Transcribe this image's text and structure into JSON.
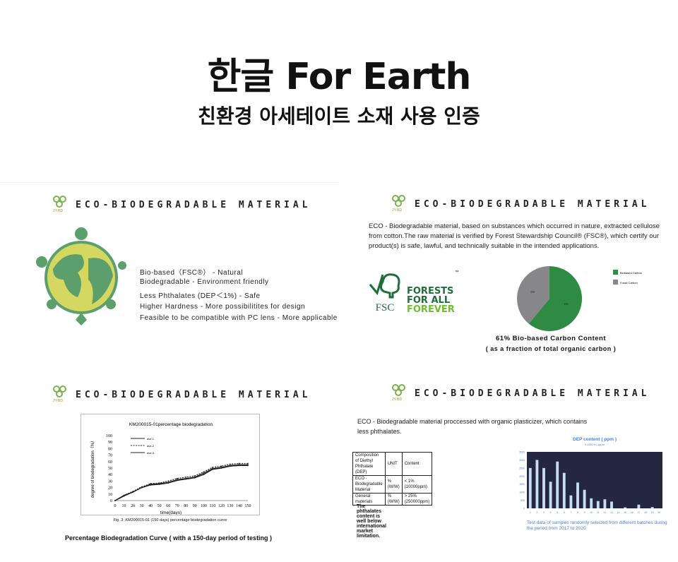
{
  "header": {
    "title": "한글 For Earth",
    "subtitle": "친환경 아세테이트 소재 사용 인증"
  },
  "section_heading": "ECO-BIODEGRADABLE MATERIAL",
  "logo_text": "JY-BD",
  "panel1": {
    "features": [
      "Bio-based（FSC®） - Natural",
      "Biodegradable - Environment friendly",
      "Less Phthalates (DEP＜1%) - Safe",
      "Higher Hardness - More possibilitites for design",
      "Feasible to be compatible with PC lens - More applicable"
    ]
  },
  "panel2": {
    "text": "ECO - Biodegradable material, based on substances which occurred in nature, extracted cellulose from cotton.The raw material is verified by  Forest Stewardship Council® (FSC®), which certify our product(s) is safe, lawful, and technically suitable in the intended applications.",
    "fsc_logo": {
      "line1": "FORESTS",
      "line2": "FOR ALL",
      "line3": "FOREVER",
      "mark": "FSC",
      "tm": "™"
    },
    "caption1": "61% Bio-based Carbon Content",
    "caption2": "( as a fraction of total organic carbon )"
  },
  "panel3": {
    "caption": "Fig. 3: KM200015-01 (150 days) percentage biodegradation curve",
    "footer": "Percentage Biodegradation Curve ( with a 150-day period of testing )"
  },
  "panel4": {
    "text": "ECO - Biodegradable material proccessed with organic plasticizer, which contains less phthalates.",
    "table": {
      "headers": [
        "Composition of Diethyl Phthalate (DEP)",
        "UNIT",
        "Content"
      ],
      "rows": [
        [
          "ECO - Biodegradable Material",
          "%(W/W)",
          "< 1% (10000ppm)"
        ],
        [
          "General materials",
          "%(W/W)",
          "> 25% (250000ppm)"
        ]
      ]
    },
    "note": "The phthalates content is well below international market limitation.",
    "chart_caption": "Test data of samples randomly selected from different batches during the period from 2017 to 2020"
  },
  "chart_data": [
    {
      "type": "pie",
      "labels": [
        "Biobased Carbon",
        "Fossil Carbon"
      ],
      "values": [
        61,
        39
      ],
      "slice_labels": [
        "61%",
        "39%"
      ],
      "colors": [
        "#2f8a43",
        "#87878a"
      ],
      "legend": "right"
    },
    {
      "type": "line",
      "title": "KM200015-01percentage biodegradation",
      "xlabel": "time(days)",
      "ylabel": "degree of biodegradation（%）",
      "xlim": [
        0,
        150
      ],
      "ylim": [
        0,
        100
      ],
      "xticks": [
        0,
        10,
        20,
        30,
        40,
        50,
        60,
        70,
        80,
        90,
        100,
        110,
        120,
        130,
        140,
        150
      ],
      "yticks": [
        0,
        10,
        20,
        30,
        40,
        50,
        60,
        70,
        80,
        90,
        100
      ],
      "x": [
        0,
        10,
        20,
        30,
        40,
        50,
        60,
        70,
        80,
        90,
        100,
        110,
        120,
        130,
        140,
        150
      ],
      "series": [
        {
          "name": "ave-1",
          "values": [
            0,
            8,
            13,
            20,
            24,
            25,
            27,
            31,
            33,
            35,
            40,
            48,
            50,
            53,
            54,
            54
          ]
        },
        {
          "name": "ave-2",
          "values": [
            0,
            8,
            14,
            21,
            26,
            27,
            30,
            34,
            36,
            38,
            44,
            51,
            53,
            56,
            57,
            57
          ]
        },
        {
          "name": "ave-3",
          "values": [
            0,
            7,
            13,
            20,
            25,
            26,
            28,
            32,
            34,
            36,
            42,
            49,
            51,
            54,
            55,
            55
          ]
        }
      ]
    },
    {
      "type": "bar",
      "title": "DEP content ( ppm )",
      "subtitle": "0.0001%=1ppm",
      "categories": [
        "1",
        "2",
        "3",
        "4",
        "5",
        "6",
        "7",
        "8",
        "9",
        "10",
        "11",
        "12",
        "13",
        "14",
        "15",
        "16",
        "17",
        "18",
        "19",
        "20"
      ],
      "values": [
        2500,
        3000,
        2500,
        1650,
        2900,
        2200,
        800,
        1600,
        1150,
        620,
        450,
        560,
        420,
        0,
        60,
        0,
        230,
        0,
        80,
        0
      ],
      "ylim": [
        0,
        3500
      ],
      "yticks": [
        0,
        500,
        1000,
        1500,
        2000,
        2500,
        3000,
        3500
      ],
      "background": "#232840",
      "bar_color": "#c9dcf3"
    }
  ]
}
